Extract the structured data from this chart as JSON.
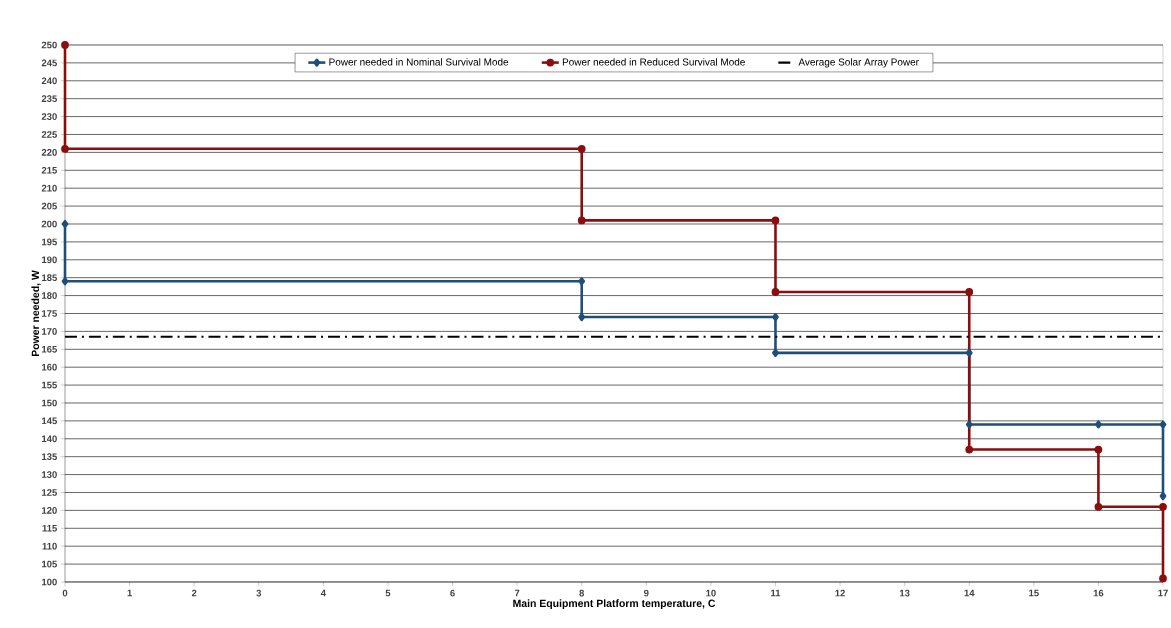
{
  "chart_data": {
    "type": "line",
    "xlabel": "Main Equipment Platform temperature, C",
    "ylabel": "Power needed, W",
    "xlim": [
      0,
      17
    ],
    "xticks": [
      0,
      1,
      2,
      3,
      4,
      5,
      6,
      7,
      8,
      9,
      10,
      11,
      12,
      13,
      14,
      15,
      16,
      17
    ],
    "ylim": [
      100,
      250
    ],
    "yticks": [
      100,
      105,
      110,
      115,
      120,
      125,
      130,
      135,
      140,
      145,
      150,
      155,
      160,
      165,
      170,
      175,
      180,
      185,
      190,
      195,
      200,
      205,
      210,
      215,
      220,
      225,
      230,
      235,
      240,
      245,
      250
    ],
    "grid": "y",
    "legend": "top",
    "series": [
      {
        "name": "Power needed in Nominal Survival Mode",
        "color": "#1f4e79",
        "marker": "diamond",
        "line_style": "solid",
        "x": [
          0,
          0,
          8,
          8,
          11,
          11,
          14,
          14,
          16,
          17,
          17
        ],
        "values": [
          200,
          184,
          184,
          174,
          174,
          164,
          164,
          144,
          144,
          144,
          124
        ]
      },
      {
        "name": "Power needed in Reduced Survival Mode",
        "color": "#8b0e0e",
        "marker": "circle",
        "line_style": "solid",
        "x": [
          0,
          0,
          8,
          8,
          11,
          11,
          14,
          14,
          16,
          16,
          17,
          17
        ],
        "values": [
          250,
          221,
          221,
          201,
          201,
          181,
          181,
          137,
          137,
          121,
          121,
          101
        ]
      },
      {
        "name": "Average Solar Array Power",
        "color": "#000000",
        "marker": "none",
        "line_style": "dashed",
        "x": [
          0,
          17
        ],
        "values": [
          168.5,
          168.5
        ]
      }
    ]
  }
}
